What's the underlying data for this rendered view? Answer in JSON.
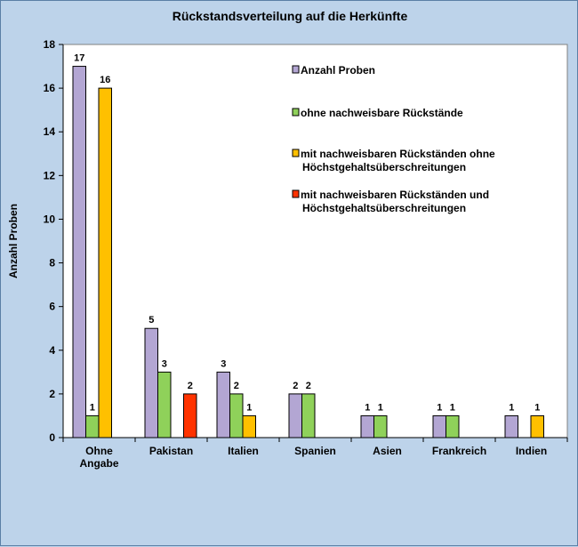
{
  "chart_data": {
    "type": "bar",
    "title": "Rückstandsverteilung auf die Herkünfte",
    "xlabel": "",
    "ylabel": "Anzahl Proben",
    "ylim": [
      0,
      18
    ],
    "yticks": [
      0,
      2,
      4,
      6,
      8,
      10,
      12,
      14,
      16,
      18
    ],
    "grid": false,
    "legend_position": "top-right",
    "categories": [
      [
        "Ohne",
        "Angabe"
      ],
      [
        "Pakistan"
      ],
      [
        "Italien"
      ],
      [
        "Spanien"
      ],
      [
        "Asien"
      ],
      [
        "Frankreich"
      ],
      [
        "Indien"
      ]
    ],
    "series": [
      {
        "name": [
          "Anzahl Proben"
        ],
        "color": "#b3a6d3",
        "values": [
          17,
          5,
          3,
          2,
          1,
          1,
          1
        ]
      },
      {
        "name": [
          "ohne nachweisbare Rückstände"
        ],
        "color": "#8fd15a",
        "values": [
          1,
          3,
          2,
          2,
          1,
          1,
          null
        ]
      },
      {
        "name": [
          "mit nachweisbaren Rückständen ohne",
          "Höchstgehaltsüberschreitungen"
        ],
        "color": "#ffc000",
        "values": [
          16,
          null,
          1,
          null,
          null,
          null,
          1
        ]
      },
      {
        "name": [
          "mit nachweisbaren Rückständen und",
          "Höchstgehaltsüberschreitungen"
        ],
        "color": "#ff3300",
        "values": [
          null,
          2,
          null,
          null,
          null,
          null,
          null
        ]
      }
    ]
  }
}
